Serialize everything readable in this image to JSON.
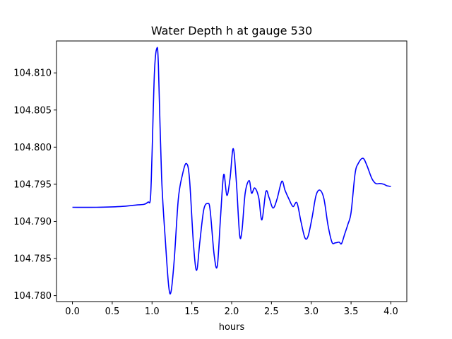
{
  "chart_data": {
    "type": "line",
    "title": "Water Depth h at gauge 530",
    "xlabel": "hours",
    "ylabel": "",
    "xlim": [
      -0.2,
      4.2
    ],
    "ylim": [
      104.7792,
      104.8143
    ],
    "xticks": [
      0.0,
      0.5,
      1.0,
      1.5,
      2.0,
      2.5,
      3.0,
      3.5,
      4.0
    ],
    "xtick_labels": [
      "0.0",
      "0.5",
      "1.0",
      "1.5",
      "2.0",
      "2.5",
      "3.0",
      "3.5",
      "4.0"
    ],
    "yticks": [
      104.78,
      104.785,
      104.79,
      104.795,
      104.8,
      104.805,
      104.81
    ],
    "ytick_labels": [
      "104.780",
      "104.785",
      "104.790",
      "104.795",
      "104.800",
      "104.805",
      "104.810"
    ],
    "grid": false,
    "colors": {
      "line": "#0000ff"
    },
    "series": [
      {
        "x": [
          0.0,
          0.3,
          0.6,
          0.8,
          0.9,
          0.95,
          0.98,
          1.0,
          1.03,
          1.06,
          1.08,
          1.12,
          1.17,
          1.21,
          1.24,
          1.28,
          1.33,
          1.38,
          1.43,
          1.47,
          1.52,
          1.56,
          1.6,
          1.65,
          1.7,
          1.73,
          1.78,
          1.82,
          1.86,
          1.9,
          1.94,
          1.98,
          2.02,
          2.06,
          2.1,
          2.13,
          2.17,
          2.22,
          2.25,
          2.29,
          2.34,
          2.38,
          2.43,
          2.47,
          2.52,
          2.57,
          2.63,
          2.67,
          2.72,
          2.77,
          2.82,
          2.87,
          2.92,
          2.96,
          3.01,
          3.06,
          3.11,
          3.16,
          3.21,
          3.26,
          3.3,
          3.35,
          3.38,
          3.42,
          3.46,
          3.5,
          3.55,
          3.59,
          3.65,
          3.7,
          3.76,
          3.81,
          3.86,
          3.91,
          3.95,
          4.0
        ],
        "y": [
          104.7919,
          104.7919,
          104.792,
          104.7922,
          104.7923,
          104.7926,
          104.7931,
          104.799,
          104.81,
          104.8133,
          104.811,
          104.796,
          104.787,
          104.7812,
          104.7806,
          104.785,
          104.793,
          104.7962,
          104.7978,
          104.7958,
          104.787,
          104.7834,
          104.7872,
          104.7916,
          104.7924,
          104.7915,
          104.7855,
          104.784,
          104.7905,
          104.7963,
          104.7935,
          104.7958,
          104.7998,
          104.7952,
          104.7882,
          104.7888,
          104.7938,
          104.7955,
          104.7938,
          104.7945,
          104.7932,
          104.7902,
          104.794,
          104.7932,
          104.7918,
          104.793,
          104.7954,
          104.7942,
          104.793,
          104.792,
          104.7925,
          104.79,
          104.7878,
          104.788,
          104.7905,
          104.7935,
          104.7942,
          104.793,
          104.7895,
          104.7872,
          104.7871,
          104.7872,
          104.787,
          104.7883,
          104.7896,
          104.7912,
          104.7964,
          104.7978,
          104.7985,
          104.7975,
          104.7958,
          104.7951,
          104.7951,
          104.795,
          104.7948,
          104.7947
        ]
      }
    ]
  }
}
